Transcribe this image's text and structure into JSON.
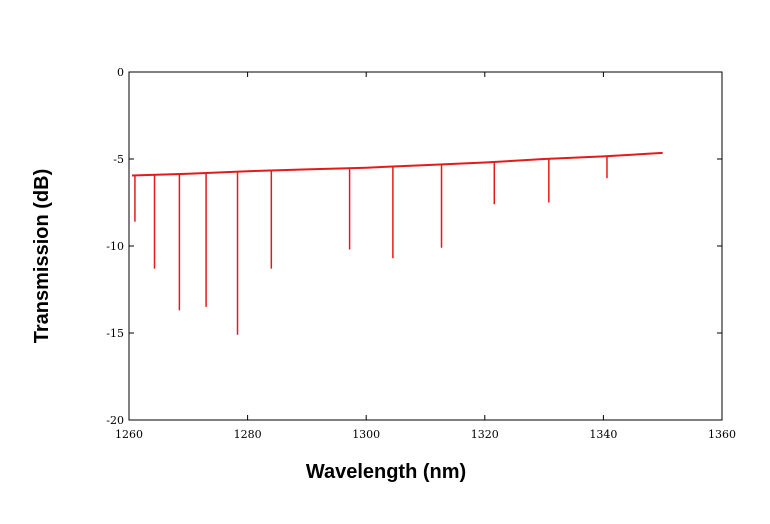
{
  "chart_data": {
    "type": "line",
    "title": "",
    "xlabel": "Wavelength (nm)",
    "ylabel": "Transmission (dB)",
    "xlim": [
      1260,
      1360
    ],
    "ylim": [
      -20,
      0
    ],
    "xticks": [
      "1260",
      "1280",
      "1300",
      "1320",
      "1340",
      "1360"
    ],
    "yticks": [
      "0",
      "-5",
      "-10",
      "-15",
      "-20"
    ],
    "grid": false,
    "legend": "none",
    "color": "#e41a1a",
    "series": [
      {
        "baseline": [
          [
            1260.5,
            -5.95
          ],
          [
            1270,
            -5.85
          ],
          [
            1280,
            -5.7
          ],
          [
            1290,
            -5.6
          ],
          [
            1300,
            -5.5
          ],
          [
            1310,
            -5.35
          ],
          [
            1320,
            -5.2
          ],
          [
            1330,
            -5.0
          ],
          [
            1340,
            -4.85
          ],
          [
            1350,
            -4.65
          ]
        ],
        "dips": [
          [
            1261.0,
            -8.6
          ],
          [
            1264.3,
            -11.3
          ],
          [
            1268.5,
            -13.7
          ],
          [
            1273.0,
            -13.5
          ],
          [
            1278.3,
            -15.1
          ],
          [
            1284.0,
            -11.3
          ],
          [
            1297.2,
            -10.2
          ],
          [
            1304.5,
            -10.7
          ],
          [
            1312.7,
            -10.1
          ],
          [
            1321.6,
            -7.6
          ],
          [
            1330.8,
            -7.5
          ],
          [
            1340.6,
            -6.1
          ]
        ]
      }
    ]
  }
}
